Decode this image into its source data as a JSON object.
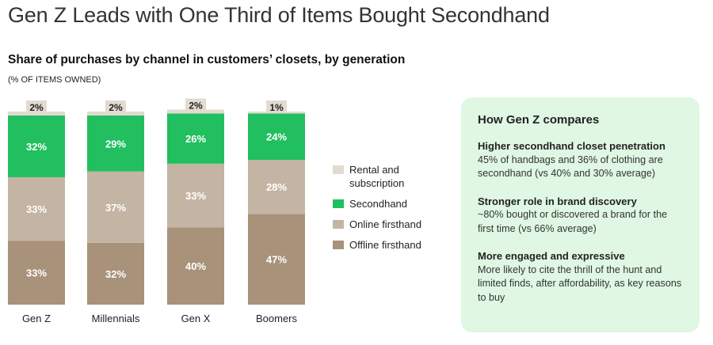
{
  "header": {
    "title": "Gen Z Leads with One Third of Items Bought Secondhand"
  },
  "chart_data": {
    "type": "bar",
    "stacked": true,
    "title": "Share of purchases by channel in customers’ closets, by generation",
    "subtitle": "(% OF ITEMS OWNED)",
    "categories": [
      "Gen Z",
      "Millennials",
      "Gen X",
      "Boomers"
    ],
    "series": [
      {
        "name": "Offline firsthand",
        "color": "#a8927a",
        "values": [
          33,
          32,
          40,
          47
        ]
      },
      {
        "name": "Online firsthand",
        "color": "#c4b4a3",
        "values": [
          33,
          37,
          33,
          28
        ]
      },
      {
        "name": "Secondhand",
        "color": "#21bf5f",
        "values": [
          32,
          29,
          26,
          24
        ]
      },
      {
        "name": "Rental and subscription",
        "color": "#e3dad0",
        "values": [
          2,
          2,
          2,
          1
        ]
      }
    ],
    "value_suffix": "%",
    "legend_placement": "right",
    "legend_order": [
      "Rental and subscription",
      "Secondhand",
      "Online firsthand",
      "Offline firsthand"
    ],
    "grid": false
  },
  "card": {
    "title": "How Gen Z compares",
    "points": [
      {
        "heading": "Higher secondhand closet penetration",
        "body": "45% of handbags and 36% of clothing are secondhand (vs 40% and 30% average)"
      },
      {
        "heading": "Stronger role in brand discovery",
        "body": "~80% bought or discovered a brand for the first time (vs 66% average)"
      },
      {
        "heading": "More engaged and expressive",
        "body": "More likely to cite the thrill of the hunt and limited finds, after affordability, as key reasons to buy"
      }
    ],
    "background": "#dff7e3"
  }
}
